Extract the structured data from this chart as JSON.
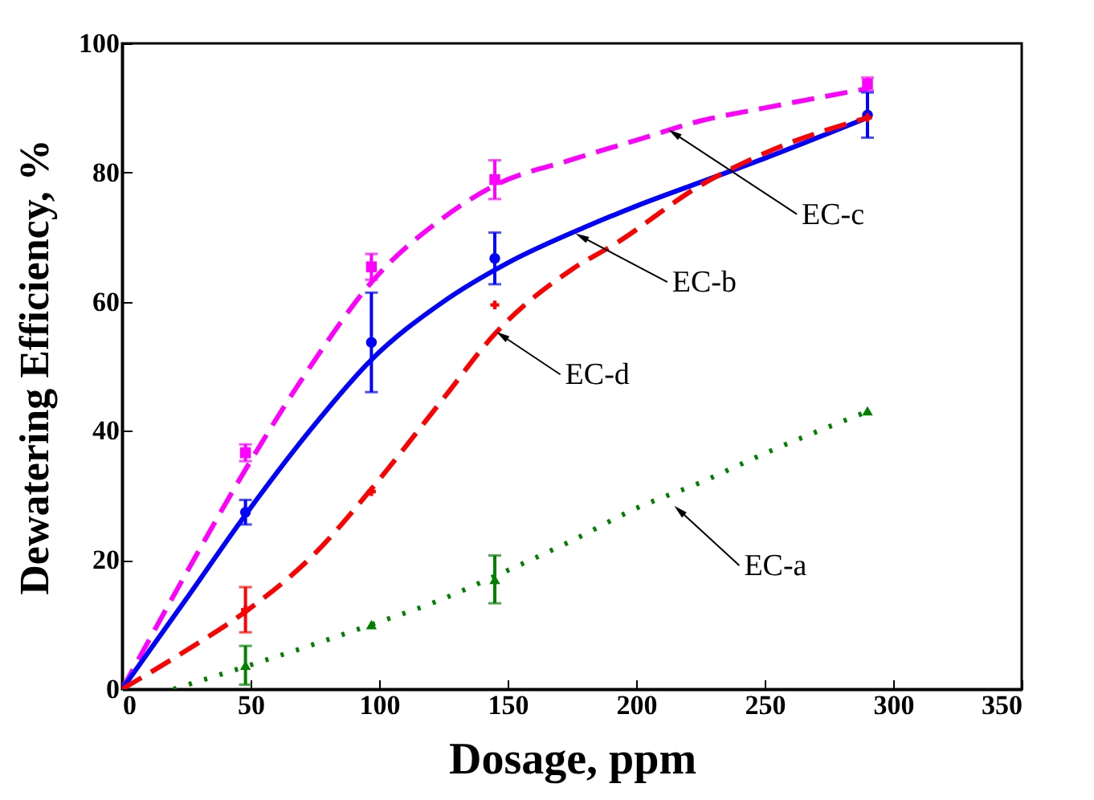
{
  "chart_data": {
    "type": "scatter",
    "xlabel": "Dosage, ppm",
    "ylabel": "Dewatering Efficiency, %",
    "xlim": [
      0,
      350
    ],
    "xticks": [
      0,
      50,
      100,
      150,
      200,
      250,
      300,
      350
    ],
    "ylim": [
      0,
      100
    ],
    "yticks": [
      0,
      20,
      40,
      60,
      80,
      100
    ],
    "grid": false,
    "series": [
      {
        "type": "line",
        "color": "#ff00ff",
        "line_style": "dashed",
        "marker": "none",
        "x": [
          0,
          25,
          48,
          75,
          97,
          125,
          145,
          175,
          200,
          225,
          250,
          290
        ],
        "values": [
          0,
          18,
          34,
          51,
          63,
          73,
          78,
          82,
          85,
          88,
          90,
          93
        ]
      },
      {
        "type": "line",
        "color": "#0000ff",
        "line_style": "solid",
        "marker": "none",
        "x": [
          0,
          25,
          48,
          75,
          97,
          125,
          150,
          181,
          200,
          225,
          250,
          290
        ],
        "values": [
          0,
          14,
          27,
          41,
          51,
          60,
          66,
          71.7,
          74.8,
          78.5,
          82.2,
          88.5
        ]
      },
      {
        "type": "line",
        "color": "#ff0000",
        "line_style": "dashed",
        "marker": "none",
        "x": [
          0,
          25,
          48,
          75,
          97,
          125,
          145,
          175,
          192,
          225,
          250,
          290
        ],
        "values": [
          0,
          6,
          12,
          21,
          31,
          45,
          55,
          65,
          69,
          78,
          83,
          88.5
        ]
      },
      {
        "type": "line",
        "color": "#008000",
        "line_style": "dotted",
        "marker": "none",
        "x": [
          20,
          48,
          75,
          97,
          125,
          145,
          175,
          200,
          225,
          250,
          290
        ],
        "values": [
          0,
          3.5,
          7,
          10,
          14,
          17.5,
          23,
          28,
          32,
          36.5,
          43
        ]
      },
      {
        "color": "#ff00ff",
        "marker": "square",
        "x": [
          48,
          97,
          145,
          290
        ],
        "values": [
          36.6,
          65.4,
          78.9,
          93.7
        ],
        "errors": [
          1.3,
          2,
          3,
          1
        ]
      },
      {
        "color": "#0000ff",
        "marker": "circle",
        "x": [
          48,
          97,
          145,
          290
        ],
        "values": [
          27.4,
          53.7,
          66.7,
          88.9
        ],
        "errors": [
          1.9,
          7.7,
          4,
          3.5
        ]
      },
      {
        "color": "#ff0000",
        "marker": "cross",
        "x": [
          48,
          97,
          145,
          290
        ],
        "values": [
          12.3,
          30.6,
          59.5,
          88.5
        ],
        "errors": [
          3.5,
          null,
          null,
          null
        ]
      },
      {
        "color": "#008000",
        "marker": "triangle",
        "x": [
          48,
          97,
          145,
          290
        ],
        "values": [
          3.7,
          10,
          17,
          43.1
        ],
        "errors": [
          3,
          null,
          3.7,
          null
        ]
      }
    ],
    "annotations": [
      {
        "text": "EC-c",
        "x": 215,
        "y": 86
      },
      {
        "text": "EC-b",
        "x": 179,
        "y": 70
      },
      {
        "text": "EC-d",
        "x": 148,
        "y": 54.7
      },
      {
        "text": "EC-a",
        "x": 217,
        "y": 27.6
      }
    ]
  }
}
